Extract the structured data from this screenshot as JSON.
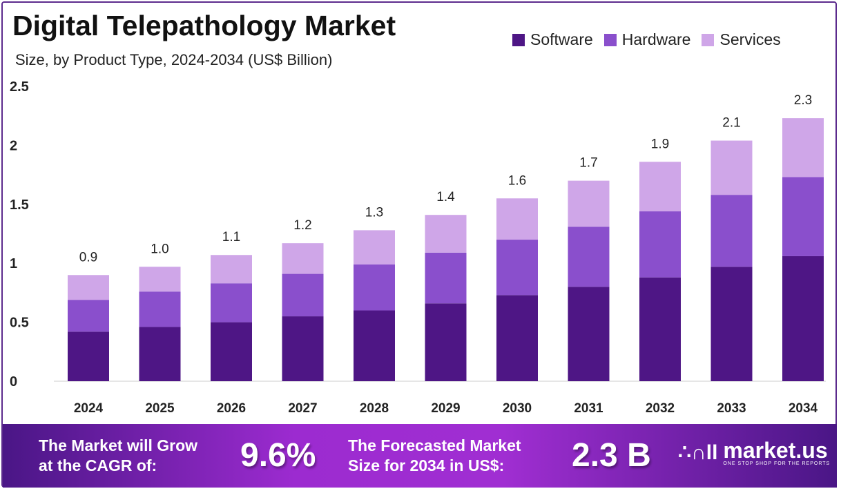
{
  "chart_data": {
    "type": "bar",
    "stacked": true,
    "title": "Digital Telepathology Market",
    "subtitle": "Size, by Product Type, 2024-2034 (US$ Billion)",
    "categories": [
      "2024",
      "2025",
      "2026",
      "2027",
      "2028",
      "2029",
      "2030",
      "2031",
      "2032",
      "2033",
      "2034"
    ],
    "series": [
      {
        "name": "Software",
        "color": "#4e1685",
        "values": [
          0.42,
          0.46,
          0.5,
          0.55,
          0.6,
          0.66,
          0.73,
          0.8,
          0.88,
          0.97,
          1.06
        ]
      },
      {
        "name": "Hardware",
        "color": "#8a4fcc",
        "values": [
          0.27,
          0.3,
          0.33,
          0.36,
          0.39,
          0.43,
          0.47,
          0.51,
          0.56,
          0.61,
          0.67
        ]
      },
      {
        "name": "Services",
        "color": "#cfa6e8",
        "values": [
          0.21,
          0.21,
          0.24,
          0.26,
          0.29,
          0.32,
          0.35,
          0.39,
          0.42,
          0.46,
          0.5
        ]
      }
    ],
    "totals_labels": [
      "0.9",
      "1.0",
      "1.1",
      "1.2",
      "1.3",
      "1.4",
      "1.6",
      "1.7",
      "1.9",
      "2.1",
      "2.3"
    ],
    "ylim": [
      0,
      2.5
    ],
    "yticks": [
      "0",
      "0.5",
      "1",
      "1.5",
      "2",
      "2.5"
    ],
    "grid": false,
    "legend": "top-right"
  },
  "banner": {
    "cagr_text_1": "The Market will Grow",
    "cagr_text_2": "at the CAGR of:",
    "cagr_value": "9.6%",
    "forecast_text_1": "The Forecasted Market",
    "forecast_text_2": "Size for 2034 in US$:",
    "forecast_value": "2.3 B",
    "logo_name": "market.us",
    "logo_tagline": "ONE STOP SHOP FOR THE REPORTS"
  }
}
